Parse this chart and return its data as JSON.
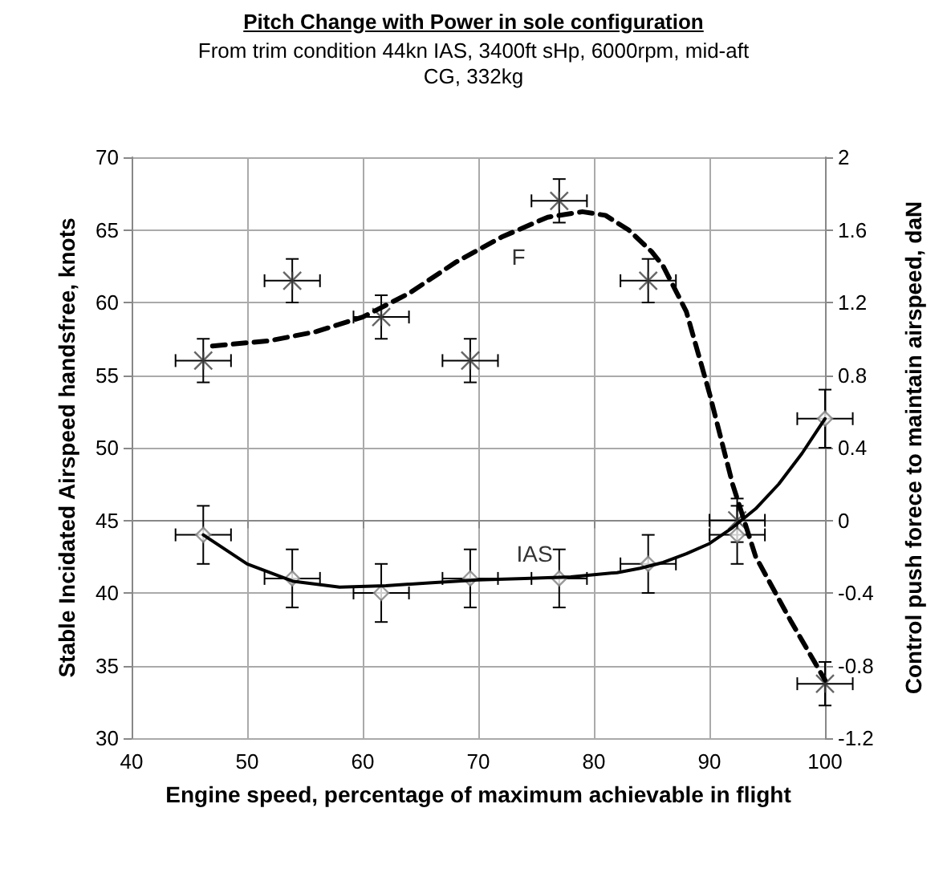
{
  "chart_data": {
    "type": "scatter",
    "title": "Pitch Change with Power in sole configuration",
    "subtitle": "From trim condition 44kn IAS, 3400ft sHp, 6000rpm, mid-aft CG, 332kg",
    "xlabel": "Engine speed, percentage of maximum achievable in flight",
    "ylabel": "Stable Incidated Airspeed handsfree, knots",
    "y2label": "Control push forece to maintain airspeed, daN",
    "xlim": [
      40,
      100
    ],
    "xticks": [
      40,
      50,
      60,
      70,
      80,
      90,
      100
    ],
    "ylim": [
      30,
      70
    ],
    "yticks": [
      30,
      35,
      40,
      45,
      50,
      55,
      60,
      65,
      70
    ],
    "y2lim": [
      -1.2,
      2
    ],
    "y2ticks": [
      -1.2,
      -0.8,
      -0.4,
      0,
      0.4,
      0.8,
      1.2,
      1.6,
      2
    ],
    "grid": true,
    "annotations": [
      "F",
      "IAS"
    ],
    "series": [
      {
        "axis": "y",
        "marker": "diamond",
        "color": "#808080",
        "x": [
          46.2,
          53.9,
          61.6,
          69.3,
          77,
          84.7,
          92.4,
          100
        ],
        "values": [
          44,
          41,
          40,
          41,
          41,
          42,
          44,
          52
        ],
        "errors": [
          2,
          2,
          2,
          2,
          2,
          2,
          2,
          2
        ],
        "xerrors": [
          2.4,
          2.4,
          2.4,
          2.4,
          2.4,
          2.4,
          2.4,
          2.4
        ]
      },
      {
        "axis": "y2",
        "marker": "cross",
        "color": "#404040",
        "x": [
          46.2,
          53.9,
          61.6,
          69.3,
          77,
          84.7,
          92.4,
          100
        ],
        "values": [
          0.88,
          1.32,
          1.12,
          0.88,
          1.76,
          1.32,
          0,
          -0.9
        ],
        "errors": [
          0.12,
          0.12,
          0.12,
          0.12,
          0.12,
          0.12,
          0.12,
          0.12
        ],
        "xerrors": [
          2.4,
          2.4,
          2.4,
          2.4,
          2.4,
          2.4,
          2.4,
          2.4
        ]
      },
      {
        "type": "line",
        "axis": "y",
        "marker": "none",
        "line_style": "solid",
        "color": "#000000",
        "x": [
          46.2,
          50,
          54,
          58,
          62,
          66,
          70,
          74,
          78,
          82,
          84,
          86,
          88,
          90,
          92,
          94,
          96,
          98,
          100
        ],
        "values": [
          44,
          42,
          40.8,
          40.4,
          40.5,
          40.7,
          40.9,
          41,
          41.1,
          41.4,
          41.7,
          42.1,
          42.7,
          43.4,
          44.5,
          45.8,
          47.5,
          49.6,
          52
        ]
      },
      {
        "type": "line",
        "axis": "y2",
        "marker": "none",
        "line_style": "dashed",
        "color": "#000000",
        "x": [
          47,
          52,
          56,
          60,
          64,
          68,
          72,
          76,
          79,
          81,
          83,
          85,
          86,
          88,
          90,
          92,
          94,
          97,
          100
        ],
        "values": [
          0.96,
          0.99,
          1.04,
          1.12,
          1.25,
          1.42,
          1.56,
          1.67,
          1.7,
          1.68,
          1.6,
          1.48,
          1.4,
          1.15,
          0.7,
          0.2,
          -0.2,
          -0.55,
          -0.88
        ]
      }
    ]
  }
}
